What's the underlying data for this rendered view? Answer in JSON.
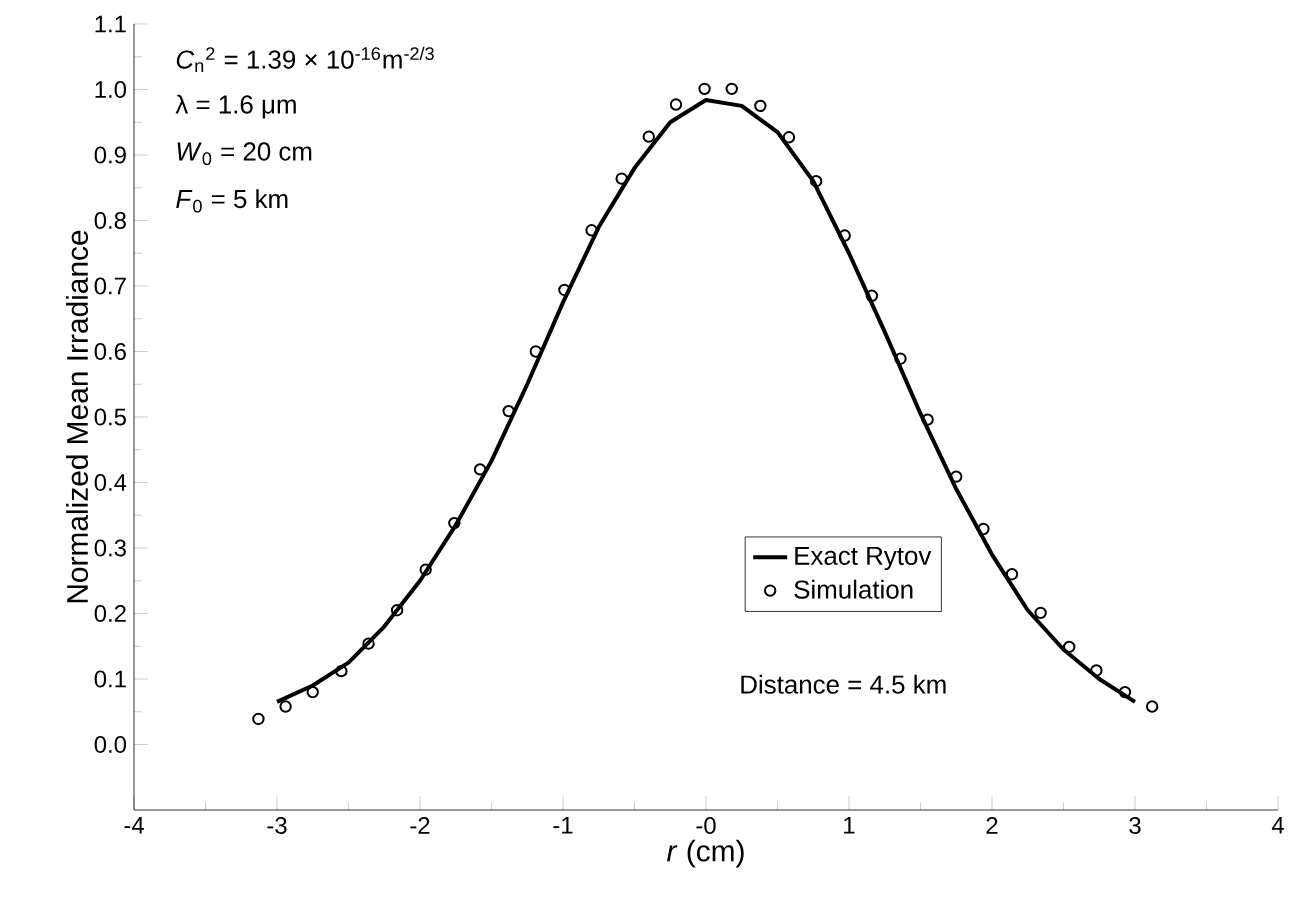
{
  "chart_data": {
    "type": "line",
    "xlabel": "*r* (cm)",
    "ylabel": "Normalized Mean Irradiance",
    "xlim": [
      -4,
      4
    ],
    "ylim": [
      -0.1,
      1.1
    ],
    "xticks": [
      -4,
      -3,
      -2,
      -1,
      {
        "value": 0,
        "label": "-0"
      },
      1,
      2,
      3,
      4
    ],
    "yticks": [
      {
        "value": 0,
        "label": "0.0"
      },
      0.1,
      0.2,
      0.3,
      0.4,
      0.5,
      0.6,
      0.7,
      0.8,
      0.9,
      {
        "value": 1,
        "label": "1.0"
      },
      1.1
    ],
    "legend": "center",
    "grid": false,
    "annotations": [
      "*C*$_{n}$$^{2}$ = 1.39 × 10$^{-16}$m$^{-2/3}$",
      "λ = 1.6 μm",
      "*W*$_{0}$ = 20 cm",
      "*F*$_{0}$ = 5 km",
      "Distance = 4.5 km"
    ],
    "series": [
      {
        "name": "Exact Rytov",
        "color": "#000000",
        "marker": "none",
        "line_style": "solid",
        "x": [
          -3,
          -2.75,
          -2.5,
          -2.25,
          -2,
          -1.75,
          -1.5,
          -1.25,
          -1,
          -0.75,
          -0.5,
          -0.25,
          0,
          0.25,
          0.5,
          0.75,
          1,
          1.25,
          1.5,
          1.75,
          2,
          2.25,
          2.5,
          2.75,
          3
        ],
        "values": [
          0.065,
          0.09,
          0.125,
          0.18,
          0.25,
          0.335,
          0.433,
          0.55,
          0.675,
          0.79,
          0.88,
          0.95,
          0.984,
          0.975,
          0.935,
          0.86,
          0.75,
          0.63,
          0.505,
          0.39,
          0.29,
          0.205,
          0.145,
          0.1,
          0.065
        ]
      },
      {
        "name": "Simulation",
        "type": "scatter",
        "color": "#000000",
        "marker": "circle",
        "x": [
          -3.13,
          -2.94,
          -2.75,
          -2.55,
          -2.36,
          -2.16,
          -1.96,
          -1.76,
          -1.58,
          -1.38,
          -1.19,
          -0.99,
          -0.8,
          -0.59,
          -0.4,
          -0.21,
          -0.01,
          0.18,
          0.38,
          0.58,
          0.77,
          0.97,
          1.16,
          1.36,
          1.55,
          1.75,
          1.94,
          2.14,
          2.34,
          2.54,
          2.73,
          2.93,
          3.12
        ],
        "values": [
          0.039,
          0.058,
          0.08,
          0.112,
          0.154,
          0.205,
          0.267,
          0.338,
          0.42,
          0.509,
          0.6,
          0.694,
          0.785,
          0.864,
          0.928,
          0.977,
          1.001,
          1.001,
          0.975,
          0.927,
          0.86,
          0.777,
          0.685,
          0.589,
          0.496,
          0.409,
          0.329,
          0.26,
          0.201,
          0.149,
          0.113,
          0.08,
          0.058
        ]
      }
    ]
  }
}
